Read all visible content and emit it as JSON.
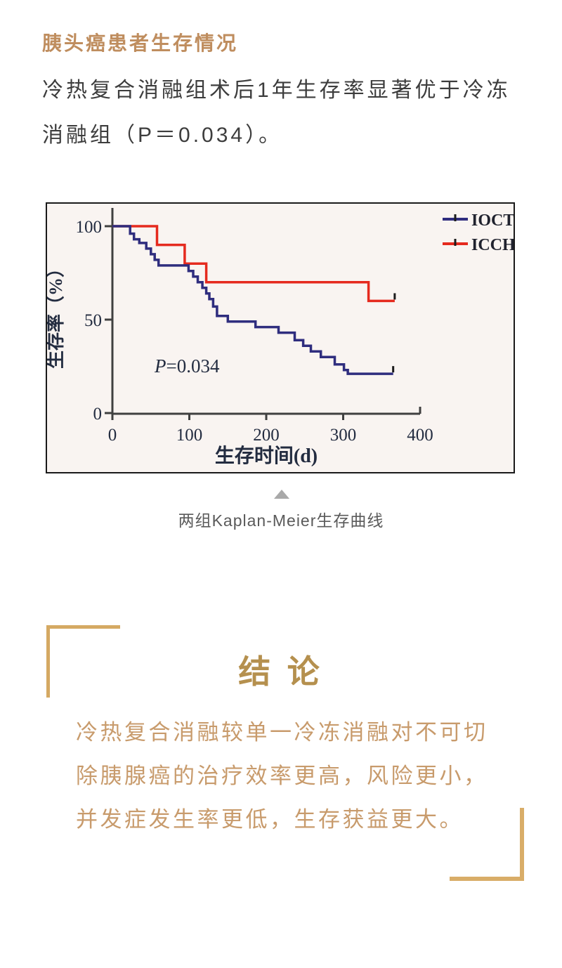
{
  "header": {
    "title": "胰头癌患者生存情况"
  },
  "intro": {
    "lines": [
      "冷热复合消融组术后1年生存率显著优于冷冻",
      "消融组（P＝0.034）。"
    ]
  },
  "figure": {
    "pointer_icon": "up-triangle",
    "caption": "两组Kaplan-Meier生存曲线"
  },
  "chart_data": {
    "type": "line",
    "subtype": "kaplan-meier-step",
    "title": "",
    "xlabel": "生存时间(d)",
    "ylabel": "生存率（%）",
    "xlim": [
      0,
      400
    ],
    "ylim": [
      0,
      100
    ],
    "x_ticks": [
      0,
      100,
      200,
      300,
      400
    ],
    "y_ticks": [
      0,
      50,
      100
    ],
    "grid": false,
    "legend_position": "top-right",
    "annotation": "P=0.034",
    "series": [
      {
        "name": "IOCT",
        "color": "#2f2d7e",
        "censored_end": true,
        "points": [
          [
            0,
            100
          ],
          [
            23,
            96
          ],
          [
            28,
            93
          ],
          [
            35,
            91
          ],
          [
            44,
            88
          ],
          [
            50,
            85
          ],
          [
            55,
            82
          ],
          [
            60,
            79
          ],
          [
            99,
            76
          ],
          [
            105,
            73
          ],
          [
            111,
            70
          ],
          [
            117,
            67
          ],
          [
            122,
            64
          ],
          [
            126,
            61
          ],
          [
            131,
            57
          ],
          [
            136,
            52
          ],
          [
            150,
            49
          ],
          [
            186,
            46
          ],
          [
            216,
            43
          ],
          [
            237,
            39
          ],
          [
            248,
            36
          ],
          [
            258,
            33
          ],
          [
            271,
            30
          ],
          [
            289,
            26
          ],
          [
            301,
            23
          ],
          [
            306,
            21
          ],
          [
            365,
            21
          ]
        ]
      },
      {
        "name": "ICCH",
        "color": "#e52a1e",
        "censored_end": true,
        "points": [
          [
            0,
            100
          ],
          [
            58,
            90
          ],
          [
            94,
            80
          ],
          [
            122,
            70
          ],
          [
            333,
            60
          ],
          [
            367,
            60
          ]
        ]
      }
    ]
  },
  "conclusion": {
    "heading": "结 论",
    "lines": [
      "冷热复合消融较单一冷冻消融对不可切",
      "除胰腺癌的治疗效率更高，风险更小，",
      "并发症发生率更低，生存获益更大。"
    ]
  },
  "colors": {
    "accent_gold": "#bf8d5e",
    "bracket_gold": "#d5a963",
    "heading_gold": "#b5904e",
    "conclusion_text": "#c89b6c",
    "body_text": "#3d3d3d",
    "caption_gray": "#5a5a5a",
    "axis_dark": "#404040",
    "chart_background": "#f9f4f1",
    "ioct_navy": "#2f2d7e",
    "icch_red": "#e52a1e"
  }
}
